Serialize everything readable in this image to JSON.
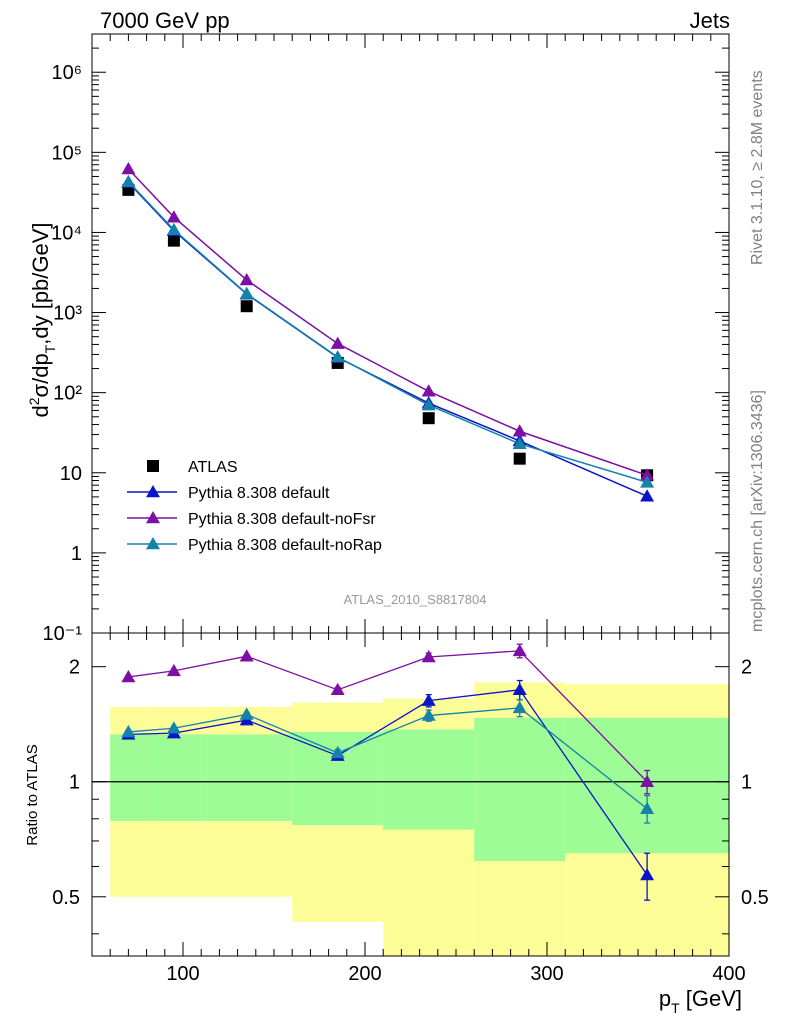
{
  "header": {
    "left": "7000 GeV pp",
    "right": "Jets"
  },
  "side_text": {
    "rivet": "Rivet 3.1.10, ≥ 2.8M events",
    "mcplots": "mcplots.cern.ch [arXiv:1306.3436]"
  },
  "analysis_label": "ATLAS_2010_S8817804",
  "axes": {
    "top_ylabel_html": "d²σ/dp_T,dy [pb/GeV]",
    "bottom_ylabel": "Ratio to ATLAS",
    "xlabel": "p_T [GeV]"
  },
  "colors": {
    "data": "#000000",
    "default": "#0a14c8",
    "noFsr": "#7d0fa5",
    "noRap": "#1482aa",
    "band_inner": "#9dfc96",
    "band_outer": "#fdfd98"
  },
  "chart_data": [
    {
      "type": "line",
      "scale": "log",
      "xlim": [
        50,
        400
      ],
      "ylim": [
        0.1,
        3000000
      ],
      "yticks": [
        {
          "v": 0.1,
          "label": "10⁻¹"
        },
        {
          "v": 1,
          "label": "1"
        },
        {
          "v": 10,
          "label": "10"
        },
        {
          "v": 100,
          "label": "10²"
        },
        {
          "v": 1000,
          "label": "10³"
        },
        {
          "v": 10000,
          "label": "10⁴"
        },
        {
          "v": 100000,
          "label": "10⁵"
        },
        {
          "v": 1000000,
          "label": "10⁶"
        }
      ],
      "x": [
        70,
        95,
        135,
        185,
        235,
        285,
        355
      ],
      "series": [
        {
          "name": "ATLAS",
          "key": "data",
          "marker": "square",
          "values": [
            34000,
            7900,
            1200,
            235,
            48,
            15,
            9.3
          ]
        },
        {
          "name": "Pythia 8.308 default",
          "key": "default",
          "marker": "triangle",
          "values": [
            42000,
            10500,
            1700,
            275,
            74,
            25,
            5.1
          ]
        },
        {
          "name": "Pythia 8.308 default-noFsr",
          "key": "noFsr",
          "marker": "triangle",
          "values": [
            62000,
            15500,
            2550,
            410,
            104,
            33,
            9.3
          ]
        },
        {
          "name": "Pythia 8.308 default-noRap",
          "key": "noRap",
          "marker": "triangle",
          "values": [
            43000,
            10800,
            1720,
            278,
            70,
            23,
            7.6
          ]
        }
      ]
    },
    {
      "type": "line",
      "scale": "log",
      "xlim": [
        50,
        400
      ],
      "ylim": [
        0.35,
        2.45
      ],
      "xticks": [
        100,
        200,
        300,
        400
      ],
      "yticks": [
        {
          "v": 0.5,
          "label": "0.5"
        },
        {
          "v": 1,
          "label": "1"
        },
        {
          "v": 2,
          "label": "2"
        }
      ],
      "x": [
        70,
        95,
        135,
        185,
        235,
        285,
        355
      ],
      "bands": {
        "edges": [
          60,
          80,
          110,
          160,
          210,
          260,
          310,
          400
        ],
        "inner_low": [
          0.79,
          0.79,
          0.79,
          0.77,
          0.75,
          0.62,
          0.65
        ],
        "inner_high": [
          1.33,
          1.33,
          1.33,
          1.35,
          1.37,
          1.47,
          1.47
        ],
        "outer_low": [
          0.5,
          0.5,
          0.5,
          0.43,
          0.35,
          0.35,
          0.35
        ],
        "outer_high": [
          1.57,
          1.57,
          1.57,
          1.61,
          1.65,
          1.82,
          1.8
        ]
      },
      "series": [
        {
          "name": "Pythia 8.308 default",
          "key": "default",
          "values": [
            1.33,
            1.34,
            1.45,
            1.17,
            1.63,
            1.74,
            0.57
          ],
          "err": [
            0.015,
            0.015,
            0.02,
            0.025,
            0.06,
            0.1,
            0.08
          ]
        },
        {
          "name": "Pythia 8.308 default-noFsr",
          "key": "noFsr",
          "values": [
            1.88,
            1.95,
            2.13,
            1.74,
            2.12,
            2.2,
            1.0
          ],
          "err": [
            0.015,
            0.015,
            0.02,
            0.025,
            0.05,
            0.09,
            0.07
          ]
        },
        {
          "name": "Pythia 8.308 default-noRap",
          "key": "noRap",
          "values": [
            1.35,
            1.38,
            1.5,
            1.19,
            1.49,
            1.56,
            0.85
          ],
          "err": [
            0.015,
            0.015,
            0.02,
            0.025,
            0.05,
            0.08,
            0.07
          ]
        }
      ]
    }
  ]
}
